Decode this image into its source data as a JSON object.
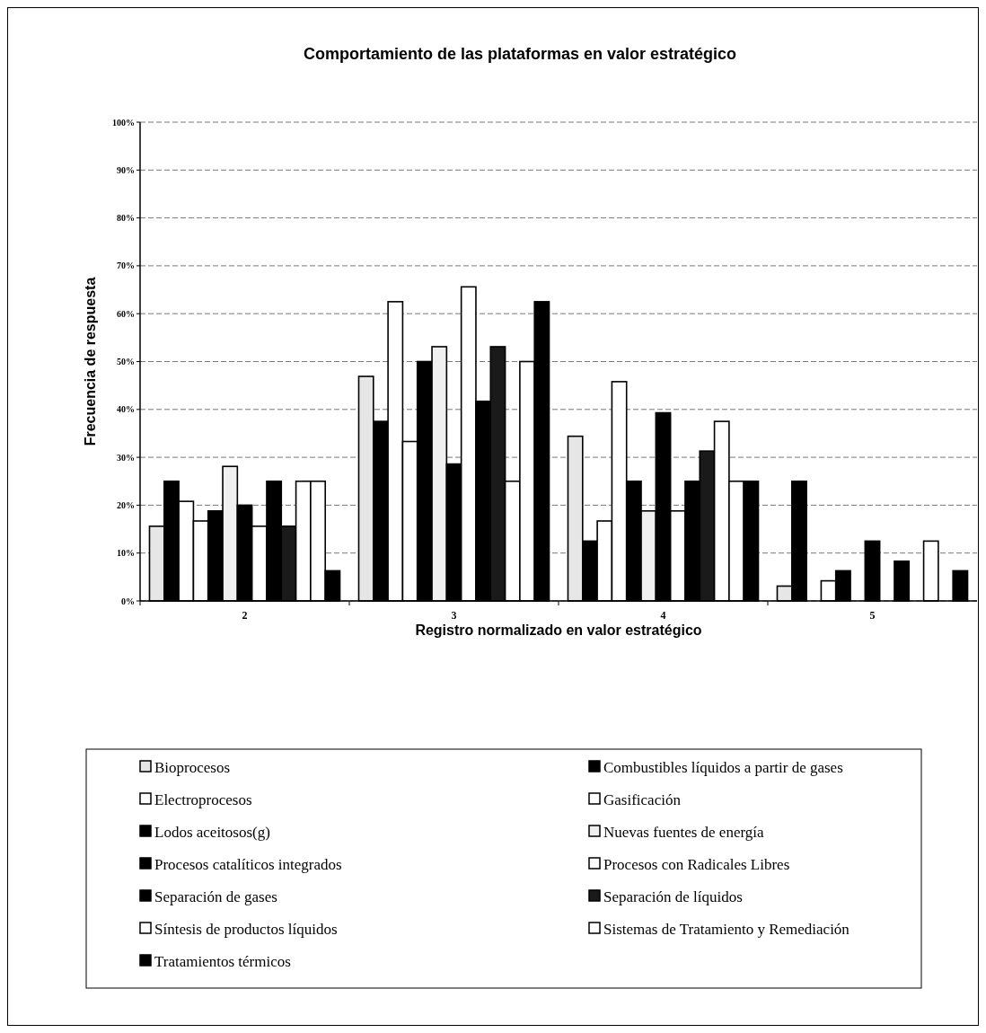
{
  "chart_data": {
    "type": "bar",
    "title": "Comportamiento de las plataformas en valor estratégico",
    "xlabel": "Registro normalizado en valor estratégico",
    "ylabel": "Frecuencia de respuesta",
    "categories": [
      "2",
      "3",
      "4",
      "5"
    ],
    "series": [
      {
        "name": "Bioprocesos",
        "color": "#e6e6e6",
        "values": [
          15.6,
          46.9,
          34.4,
          3.1
        ]
      },
      {
        "name": "Combustibles líquidos a partir de gases",
        "color": "#000000",
        "values": [
          25,
          37.5,
          12.5,
          25
        ]
      },
      {
        "name": "Electroprocesos",
        "color": "#ffffff",
        "values": [
          20.8,
          62.5,
          16.7,
          0
        ]
      },
      {
        "name": "Gasificación",
        "color": "#ffffff",
        "values": [
          16.7,
          33.3,
          45.8,
          4.2
        ]
      },
      {
        "name": "Lodos aceitosos(g)",
        "color": "#000000",
        "values": [
          18.8,
          50,
          25,
          6.3
        ]
      },
      {
        "name": "Nuevas fuentes de energía",
        "color": "#f0f0f0",
        "values": [
          28.1,
          53.1,
          18.8,
          0
        ]
      },
      {
        "name": "Procesos catalíticos integrados",
        "color": "#000000",
        "values": [
          20,
          28.6,
          39.3,
          12.5
        ]
      },
      {
        "name": "Procesos con Radicales Libres",
        "color": "#ffffff",
        "values": [
          15.6,
          65.6,
          18.8,
          0
        ]
      },
      {
        "name": "Separación de gases",
        "color": "#000000",
        "values": [
          25,
          41.7,
          25,
          8.3
        ]
      },
      {
        "name": "Separación de líquidos",
        "color": "#1a1a1a",
        "values": [
          15.6,
          53.1,
          31.3,
          0
        ]
      },
      {
        "name": "Síntesis de productos líquidos",
        "color": "#ffffff",
        "values": [
          25,
          25,
          37.5,
          12.5
        ]
      },
      {
        "name": "Sistemas de Tratamiento y Remediación",
        "color": "#ffffff",
        "values": [
          25,
          50,
          25,
          0
        ]
      },
      {
        "name": "Tratamientos térmicos",
        "color": "#000000",
        "values": [
          6.3,
          62.5,
          25,
          6.3
        ]
      }
    ],
    "ylim": [
      0,
      100
    ],
    "yticks": [
      {
        "value": 0,
        "label": "0%"
      },
      {
        "value": 10,
        "label": "10%"
      },
      {
        "value": 20,
        "label": "20%"
      },
      {
        "value": 30,
        "label": "30%"
      },
      {
        "value": 40,
        "label": "40%"
      },
      {
        "value": 50,
        "label": "50%"
      },
      {
        "value": 60,
        "label": "60%"
      },
      {
        "value": 70,
        "label": "70%"
      },
      {
        "value": 80,
        "label": "80%"
      },
      {
        "value": 90,
        "label": "90%"
      },
      {
        "value": 100,
        "label": "100%"
      }
    ],
    "grid": "y",
    "legend": "bottom"
  }
}
